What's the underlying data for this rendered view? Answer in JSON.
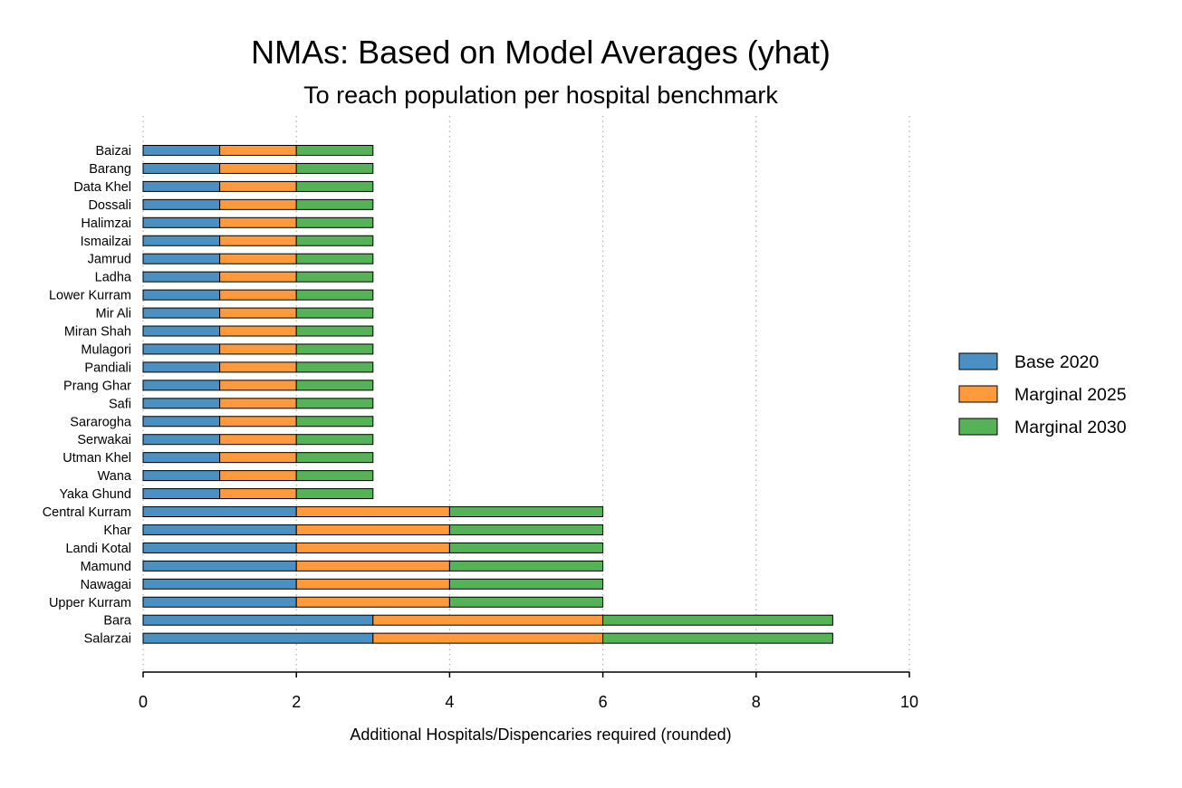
{
  "chart_data": {
    "type": "bar",
    "orientation": "horizontal",
    "stacked": true,
    "title": "NMAs: Based on Model Averages (yhat)",
    "subtitle": "To reach population per hospital benchmark",
    "xlabel": "Additional Hospitals/Dispencaries required (rounded)",
    "ylabel": "",
    "xlim": [
      0,
      10
    ],
    "xticks": [
      0,
      2,
      4,
      6,
      8,
      10
    ],
    "grid": "vertical dotted",
    "legend_position": "right",
    "categories": [
      "Baizai",
      "Barang",
      "Data Khel",
      "Dossali",
      "Halimzai",
      "Ismailzai",
      "Jamrud",
      "Ladha",
      "Lower Kurram",
      "Mir Ali",
      "Miran Shah",
      "Mulagori",
      "Pandiali",
      "Prang Ghar",
      "Safi",
      "Sararogha",
      "Serwakai",
      "Utman Khel",
      "Wana",
      "Yaka Ghund",
      "Central Kurram",
      "Khar",
      "Landi Kotal",
      "Mamund",
      "Nawagai",
      "Upper Kurram",
      "Bara",
      "Salarzai"
    ],
    "series": [
      {
        "name": "Base 2020",
        "color": "#4a90c2",
        "values": [
          1,
          1,
          1,
          1,
          1,
          1,
          1,
          1,
          1,
          1,
          1,
          1,
          1,
          1,
          1,
          1,
          1,
          1,
          1,
          1,
          2,
          2,
          2,
          2,
          2,
          2,
          3,
          3
        ]
      },
      {
        "name": "Marginal 2025",
        "color": "#ff9a3c",
        "values": [
          1,
          1,
          1,
          1,
          1,
          1,
          1,
          1,
          1,
          1,
          1,
          1,
          1,
          1,
          1,
          1,
          1,
          1,
          1,
          1,
          2,
          2,
          2,
          2,
          2,
          2,
          3,
          3
        ]
      },
      {
        "name": "Marginal 2030",
        "color": "#56b256",
        "values": [
          1,
          1,
          1,
          1,
          1,
          1,
          1,
          1,
          1,
          1,
          1,
          1,
          1,
          1,
          1,
          1,
          1,
          1,
          1,
          1,
          2,
          2,
          2,
          2,
          2,
          2,
          3,
          3
        ]
      }
    ]
  }
}
